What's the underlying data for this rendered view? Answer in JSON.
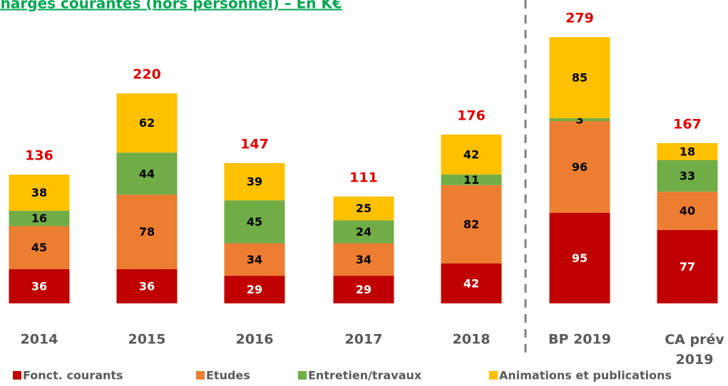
{
  "chart_data": {
    "type": "stacked_bar",
    "title": "Charges courantes (hors personnel) – En K€",
    "categories": [
      "2014",
      "2015",
      "2016",
      "2017",
      "2018",
      "BP 2019",
      "CA prév 2019"
    ],
    "series": [
      {
        "name": "Fonct. courants",
        "color": "#c00000",
        "values": [
          36,
          36,
          29,
          29,
          42,
          95,
          77
        ]
      },
      {
        "name": "Etudes",
        "color": "#ed7d31",
        "values": [
          45,
          78,
          34,
          34,
          82,
          96,
          40
        ]
      },
      {
        "name": "Entretien/travaux",
        "color": "#70ad47",
        "values": [
          16,
          44,
          45,
          24,
          11,
          3,
          33
        ]
      },
      {
        "name": "Animations et publications",
        "color": "#ffc000",
        "values": [
          38,
          62,
          39,
          25,
          42,
          85,
          18
        ]
      }
    ],
    "totals": [
      136,
      220,
      147,
      111,
      176,
      279,
      167
    ],
    "legend": "bottom"
  }
}
